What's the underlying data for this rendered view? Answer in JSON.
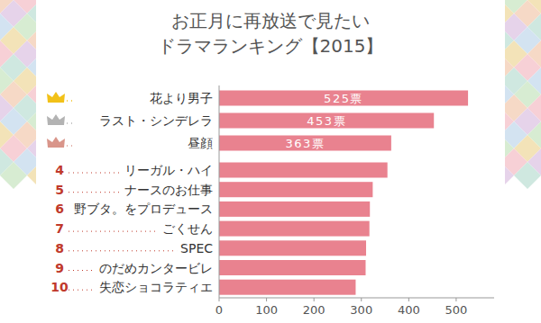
{
  "chart_data": {
    "type": "bar",
    "orientation": "horizontal",
    "title": "お正月に再放送で見たい\nドラマランキング【2015】",
    "categories": [
      "花より男子",
      "ラスト・シンデレラ",
      "昼顔",
      "リーガル・ハイ",
      "ナースのお仕事",
      "野ブタ。をプロデュース",
      "ごくせん",
      "SPEC",
      "のだめカンタービレ",
      "失恋ショコラティエ"
    ],
    "ranks": [
      null,
      null,
      null,
      4,
      5,
      6,
      7,
      8,
      9,
      10
    ],
    "values": [
      525,
      453,
      363,
      355,
      324,
      318,
      317,
      310,
      309,
      288
    ],
    "value_labels": [
      "525票",
      "453票",
      "363票",
      null,
      null,
      null,
      null,
      null,
      null,
      null
    ],
    "data_labels": true,
    "color": "#e9828f",
    "xlim": [
      0,
      580
    ],
    "xticks": [
      0,
      100,
      200,
      300,
      400,
      500
    ],
    "grid": false,
    "tick_labels": "x"
  }
}
